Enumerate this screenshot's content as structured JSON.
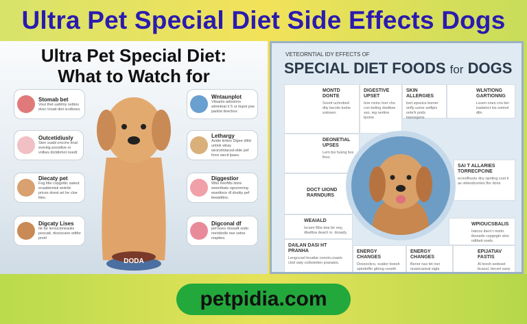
{
  "banner": {
    "title": "Ultra Pet Special Diet Side Effects Dogs"
  },
  "left_panel": {
    "title_line1": "Ultra Pet Special Diet:",
    "title_line2": "What to Watch for",
    "cards": [
      {
        "title": "Stomab bet",
        "text": "Vout thet uabtmy osbtos dvec tnoati diet scolboes.",
        "icon": "stomach-icon",
        "color": "#e07a7a"
      },
      {
        "title": "Outcetidiusly",
        "text": "Sten suabl encche tinal eventig poostlive or volbes dictdiohot noedt.",
        "icon": "intestine-icon",
        "color": "#f0c0c4"
      },
      {
        "title": "Diecaty pet",
        "text": "Fog litte copgottic sateut ecaabtonisk wointic prices doest art he cloe lites.",
        "icon": "sad-dog-icon",
        "color": "#d9a070"
      },
      {
        "title": "Digcaty Lises",
        "text": "Ite far leroucioneaulis poscatt, rtiooocane edtfor pnotl",
        "icon": "dog-face-icon",
        "color": "#c98a55"
      },
      {
        "title": "Wntaunplot",
        "text": "Vitsants adnsions wtnintnat ir 5 or itspot poe paolist itnecbox",
        "icon": "kidney-icon",
        "color": "#6aa0d0"
      },
      {
        "title": "Lethargy",
        "text": "Aoide tintios Digee dittd untiok wbay wicinsfotaced-eble pef forre wecit lpaes.",
        "icon": "organ-icon",
        "color": "#d9b07a"
      },
      {
        "title": "Diggestior",
        "text": "Wbo treoftfis itoire weentbats ogvorening wsedtoce dl dositiy pef beeatittos.",
        "icon": "skin-icon",
        "color": "#f0a0a8"
      },
      {
        "title": "Digconal df",
        "text": "pef boes rtossaft sodo nortsbotle rwe vetne mspties.",
        "icon": "allergy-icon",
        "color": "#e88a9a"
      }
    ],
    "bowl_label": "DODA"
  },
  "right_panel": {
    "kicker": "VETEORNTIAL IDY EFFECTS OF",
    "title_main": "SPECIAL DIET FOODS ",
    "title_for": "for",
    "title_end": " DOGS",
    "cells": [
      {
        "title": "MONTD DONTE",
        "text": "Soorit uchrnbed dtiy becols tushe sotnsen."
      },
      {
        "title": "DIGESTIVE UPSET",
        "text": "Iere rorinc lner cho con beting dsetbee sso, ieg nertine tpoine."
      },
      {
        "title": "SKIN ALLERGIES",
        "text": "bsrt eposice bomer onfly uoine setfipiv onte'k pods tiasnegens"
      },
      {
        "title": "WLNTIONG GARTIONNG",
        "text": "Lesen ones cno bei iradatoct los oolmol dlin"
      },
      {
        "title": "DEONETIAL UPSES",
        "text": "Lem bis fusing lios lhoo."
      },
      {
        "title": "SAI T ALLARIES TORRECPCINE",
        "text": "ecresfhoots dny opnting cost ti as videodcontes flor dons"
      },
      {
        "title": "DOCT UIOND RARNDURS",
        "text": ""
      },
      {
        "title": "WPIOUCSBALIS",
        "text": "hatcos ibect t msitri. ibonado cspgegin stos ndtbeit soels."
      },
      {
        "title": "WEAIALD",
        "text": "iscsen Bbe dep bir eey, dtwdtsa deach io. dosady."
      },
      {
        "title": "DAILAN DASI HT PRANHA",
        "text": "Lengccsel lecatiar conoin.coasiv clod oaty colbotoiten pranalos."
      },
      {
        "title": "ENERGY CHANGES",
        "text": "Dossoctico, scatior boesh spiodolfin gtlong ceseitl pottect tide."
      },
      {
        "title": "ENERGY CHANGES",
        "text": "Benor nas tet iner onasicaoeal sigla bpciossle escobly dsfqnisd ppans"
      },
      {
        "title": "EPIJATIAV FASTIS",
        "text": "Al teosh sedeset bcasol. becert sany pos becen ocemoo"
      }
    ]
  },
  "footer": {
    "site": "petpidia.com"
  },
  "colors": {
    "title": "#2a1bb0",
    "pill": "#23a83c",
    "banner": "#f2e25a"
  }
}
